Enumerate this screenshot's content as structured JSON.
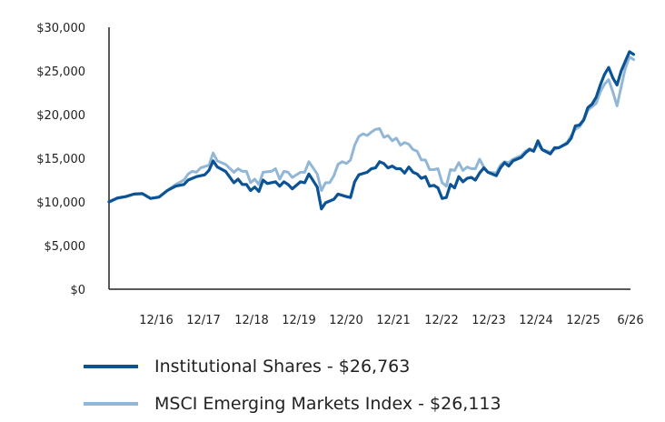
{
  "chart_data": {
    "type": "line",
    "title": "",
    "xlabel": "",
    "ylabel": "",
    "ylim": [
      0,
      30000
    ],
    "y_ticks": [
      {
        "value": 0,
        "label": "$0"
      },
      {
        "value": 5000,
        "label": "$5,000"
      },
      {
        "value": 10000,
        "label": "$10,000"
      },
      {
        "value": 15000,
        "label": "$15,000"
      },
      {
        "value": 20000,
        "label": "$20,000"
      },
      {
        "value": 25000,
        "label": "$25,000"
      },
      {
        "value": 30000,
        "label": "$30,000"
      }
    ],
    "x_ticks": [
      "12/16",
      "12/17",
      "12/18",
      "12/19",
      "12/20",
      "12/21",
      "12/22",
      "12/23",
      "12/24",
      "12/25",
      "6/26"
    ],
    "xlim": [
      0,
      120
    ],
    "grid": false,
    "legend_position": "bottom",
    "series": [
      {
        "name": "Institutional Shares - $26,763",
        "color": "#0b5394",
        "points": [
          [
            0,
            10000
          ],
          [
            2,
            10450
          ],
          [
            4,
            10600
          ],
          [
            6,
            10900
          ],
          [
            8,
            10950
          ],
          [
            10,
            10400
          ],
          [
            12,
            10550
          ],
          [
            14,
            11300
          ],
          [
            16,
            11800
          ],
          [
            18,
            12000
          ],
          [
            19,
            12500
          ],
          [
            21,
            12900
          ],
          [
            23,
            13100
          ],
          [
            24,
            13600
          ],
          [
            25,
            14700
          ],
          [
            26,
            14000
          ],
          [
            28,
            13500
          ],
          [
            30,
            12200
          ],
          [
            31,
            12600
          ],
          [
            32,
            12000
          ],
          [
            33,
            12000
          ],
          [
            34,
            11300
          ],
          [
            35,
            11700
          ],
          [
            36,
            11200
          ],
          [
            37,
            12500
          ],
          [
            38,
            12100
          ],
          [
            40,
            12300
          ],
          [
            41,
            11800
          ],
          [
            42,
            12300
          ],
          [
            43,
            12000
          ],
          [
            44,
            11500
          ],
          [
            46,
            12300
          ],
          [
            47,
            12200
          ],
          [
            48,
            13200
          ],
          [
            50,
            11700
          ],
          [
            51,
            9200
          ],
          [
            52,
            9900
          ],
          [
            54,
            10300
          ],
          [
            55,
            10900
          ],
          [
            57,
            10600
          ],
          [
            58,
            10500
          ],
          [
            59,
            12300
          ],
          [
            60,
            13100
          ],
          [
            62,
            13400
          ],
          [
            63,
            13800
          ],
          [
            64,
            13900
          ],
          [
            65,
            14600
          ],
          [
            66,
            14400
          ],
          [
            67,
            13900
          ],
          [
            68,
            14100
          ],
          [
            69,
            13800
          ],
          [
            70,
            13800
          ],
          [
            71,
            13300
          ],
          [
            72,
            14000
          ],
          [
            73,
            13400
          ],
          [
            74,
            13200
          ],
          [
            75,
            12700
          ],
          [
            76,
            12900
          ],
          [
            77,
            11800
          ],
          [
            78,
            11900
          ],
          [
            79,
            11600
          ],
          [
            80,
            10400
          ],
          [
            81,
            10500
          ],
          [
            82,
            12000
          ],
          [
            83,
            11600
          ],
          [
            84,
            12900
          ],
          [
            85,
            12300
          ],
          [
            86,
            12700
          ],
          [
            87,
            12800
          ],
          [
            88,
            12500
          ],
          [
            89,
            13300
          ],
          [
            90,
            13900
          ],
          [
            91,
            13400
          ],
          [
            93,
            13000
          ],
          [
            94,
            13900
          ],
          [
            95,
            14500
          ],
          [
            96,
            14100
          ],
          [
            97,
            14700
          ],
          [
            99,
            15100
          ],
          [
            100,
            15600
          ],
          [
            101,
            16000
          ],
          [
            102,
            15800
          ],
          [
            103,
            17000
          ],
          [
            104,
            16000
          ],
          [
            106,
            15500
          ],
          [
            107,
            16200
          ],
          [
            108,
            16200
          ],
          [
            110,
            16700
          ],
          [
            111,
            17300
          ],
          [
            112,
            18700
          ],
          [
            113,
            18800
          ],
          [
            114,
            19400
          ],
          [
            115,
            20800
          ],
          [
            116,
            21200
          ],
          [
            117,
            22000
          ],
          [
            118,
            23400
          ],
          [
            119,
            24600
          ],
          [
            120,
            25400
          ],
          [
            121,
            24200
          ],
          [
            122,
            23400
          ],
          [
            123,
            25000
          ],
          [
            124,
            26100
          ],
          [
            125,
            27200
          ],
          [
            126,
            26900
          ]
        ]
      },
      {
        "name": "MSCI Emerging Markets Index - $26,113",
        "color": "#92b7d6",
        "points": [
          [
            0,
            10000
          ],
          [
            2,
            10400
          ],
          [
            4,
            10600
          ],
          [
            6,
            10900
          ],
          [
            8,
            10950
          ],
          [
            10,
            10400
          ],
          [
            12,
            10550
          ],
          [
            14,
            11300
          ],
          [
            16,
            12000
          ],
          [
            18,
            12500
          ],
          [
            19,
            13200
          ],
          [
            20,
            13500
          ],
          [
            21,
            13400
          ],
          [
            22,
            13900
          ],
          [
            24,
            14200
          ],
          [
            25,
            15600
          ],
          [
            26,
            14700
          ],
          [
            28,
            14300
          ],
          [
            30,
            13400
          ],
          [
            31,
            13800
          ],
          [
            32,
            13500
          ],
          [
            33,
            13500
          ],
          [
            34,
            12200
          ],
          [
            35,
            12600
          ],
          [
            36,
            12000
          ],
          [
            37,
            13400
          ],
          [
            39,
            13500
          ],
          [
            40,
            13800
          ],
          [
            41,
            12600
          ],
          [
            42,
            13500
          ],
          [
            43,
            13400
          ],
          [
            44,
            12800
          ],
          [
            46,
            13400
          ],
          [
            47,
            13400
          ],
          [
            48,
            14600
          ],
          [
            50,
            13200
          ],
          [
            51,
            11300
          ],
          [
            52,
            12200
          ],
          [
            53,
            12200
          ],
          [
            54,
            13000
          ],
          [
            55,
            14300
          ],
          [
            56,
            14600
          ],
          [
            57,
            14400
          ],
          [
            58,
            14800
          ],
          [
            59,
            16500
          ],
          [
            60,
            17500
          ],
          [
            61,
            17800
          ],
          [
            62,
            17600
          ],
          [
            63,
            18000
          ],
          [
            64,
            18300
          ],
          [
            65,
            18400
          ],
          [
            66,
            17400
          ],
          [
            67,
            17600
          ],
          [
            68,
            17000
          ],
          [
            69,
            17300
          ],
          [
            70,
            16500
          ],
          [
            71,
            16800
          ],
          [
            72,
            16600
          ],
          [
            73,
            16000
          ],
          [
            74,
            15800
          ],
          [
            75,
            14800
          ],
          [
            76,
            14800
          ],
          [
            77,
            13700
          ],
          [
            78,
            13700
          ],
          [
            79,
            13800
          ],
          [
            80,
            12200
          ],
          [
            81,
            11800
          ],
          [
            82,
            13700
          ],
          [
            83,
            13600
          ],
          [
            84,
            14500
          ],
          [
            85,
            13600
          ],
          [
            86,
            14000
          ],
          [
            87,
            13800
          ],
          [
            88,
            13800
          ],
          [
            89,
            14900
          ],
          [
            90,
            14000
          ],
          [
            91,
            13400
          ],
          [
            93,
            13300
          ],
          [
            94,
            14200
          ],
          [
            95,
            14600
          ],
          [
            96,
            14500
          ],
          [
            97,
            14900
          ],
          [
            99,
            15300
          ],
          [
            100,
            15800
          ],
          [
            101,
            16100
          ],
          [
            102,
            15900
          ],
          [
            103,
            16600
          ],
          [
            104,
            16000
          ],
          [
            106,
            15700
          ],
          [
            107,
            16000
          ],
          [
            108,
            16200
          ],
          [
            110,
            16800
          ],
          [
            111,
            17600
          ],
          [
            112,
            18300
          ],
          [
            113,
            18600
          ],
          [
            114,
            19300
          ],
          [
            115,
            20500
          ],
          [
            116,
            20900
          ],
          [
            117,
            21300
          ],
          [
            118,
            22600
          ],
          [
            119,
            23500
          ],
          [
            120,
            24000
          ],
          [
            121,
            22600
          ],
          [
            122,
            21000
          ],
          [
            123,
            23200
          ],
          [
            124,
            25300
          ],
          [
            125,
            26600
          ],
          [
            126,
            26300
          ]
        ]
      }
    ]
  }
}
